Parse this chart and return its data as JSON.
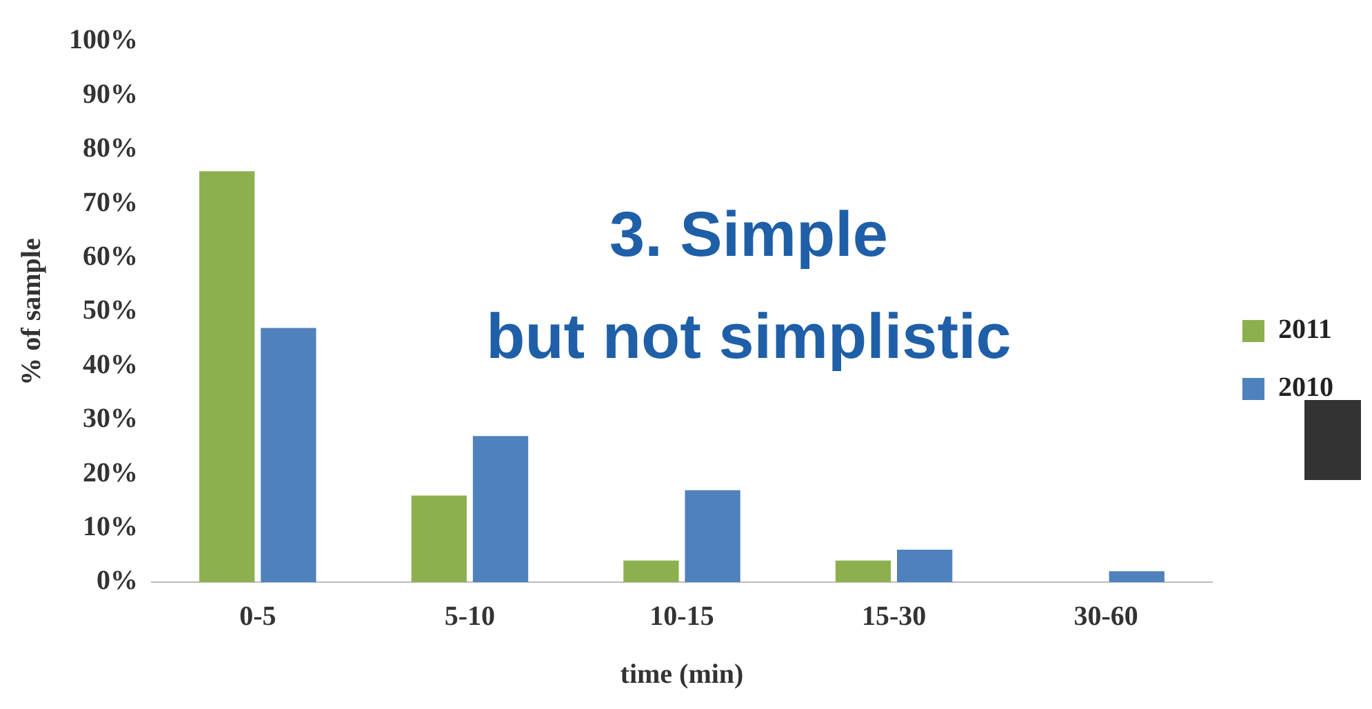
{
  "chart_data": {
    "type": "bar",
    "xlabel": "time (min)",
    "ylabel": "% of sample",
    "categories": [
      "0-5",
      "5-10",
      "10-15",
      "15-30",
      "30-60"
    ],
    "series": [
      {
        "name": "2011",
        "color": "#8db04e",
        "values": [
          76,
          16,
          4,
          4,
          0
        ]
      },
      {
        "name": "2010",
        "color": "#4f81bd",
        "values": [
          47,
          27,
          17,
          6,
          2
        ]
      }
    ],
    "ylim": [
      0,
      100
    ],
    "yticks": [
      {
        "value": 0,
        "label": "0%"
      },
      {
        "value": 10,
        "label": "10%"
      },
      {
        "value": 20,
        "label": "20%"
      },
      {
        "value": 30,
        "label": "30%"
      },
      {
        "value": 40,
        "label": "40%"
      },
      {
        "value": 50,
        "label": "50%"
      },
      {
        "value": 60,
        "label": "60%"
      },
      {
        "value": 70,
        "label": "70%"
      },
      {
        "value": 80,
        "label": "80%"
      },
      {
        "value": 90,
        "label": "90%"
      },
      {
        "value": 100,
        "label": "100%"
      }
    ],
    "grid": false,
    "legend": "right",
    "annotations": [
      "3. Simple\nbut not simplistic"
    ]
  }
}
